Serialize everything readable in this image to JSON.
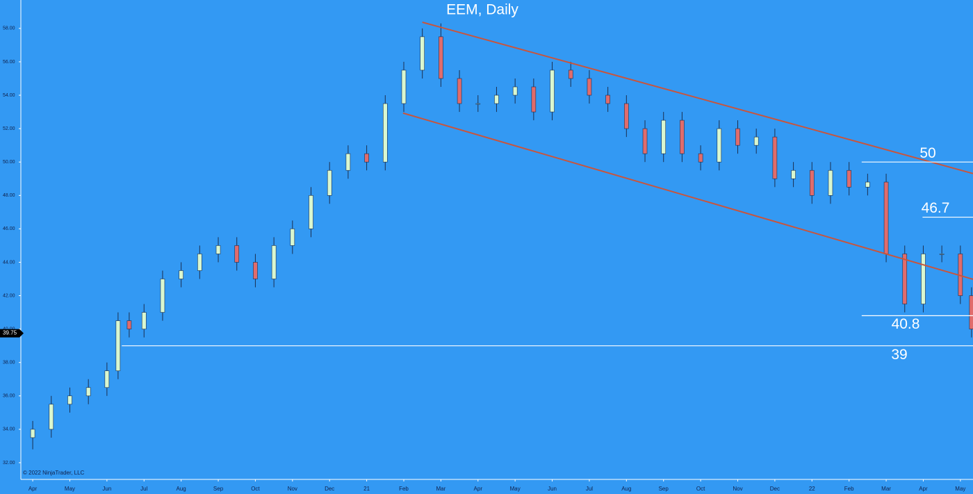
{
  "chart_data": {
    "type": "candlestick",
    "title": "EEM, Daily",
    "copyright": "© 2022 NinjaTrader, LLC",
    "background": "#3399f3",
    "up_color": "#d9f7d0",
    "down_color": "#e06c6c",
    "x": [
      0,
      0.5,
      1,
      1.5,
      2,
      2.3,
      2.6,
      3,
      3.5,
      4,
      4.5,
      5,
      5.5,
      6,
      6.5,
      7,
      7.5,
      8,
      8.5,
      9,
      9.5,
      10,
      10.5,
      11,
      11.5,
      12,
      12.5,
      13,
      13.5,
      14,
      14.5,
      15,
      15.5,
      16,
      16.5,
      17,
      17.5,
      18,
      18.5,
      19,
      19.5,
      20,
      20.5,
      21,
      21.5,
      22,
      22.5,
      23,
      23.5,
      24,
      24.5,
      25,
      25.3
    ],
    "open": [
      33.5,
      34,
      35.5,
      36,
      36.5,
      37.5,
      40.5,
      40,
      41,
      43,
      43.5,
      44.5,
      45,
      44,
      43,
      45,
      46,
      48,
      49.5,
      50.5,
      50,
      53.5,
      55.5,
      57.5,
      55,
      53.5,
      53.5,
      54,
      54.5,
      53,
      55.5,
      55,
      54,
      53.5,
      52,
      50.5,
      52.5,
      50.5,
      50,
      52,
      51,
      51.5,
      49,
      49.5,
      48,
      49.5,
      48.5,
      48.8,
      44.5,
      41.5,
      44.5,
      44.5,
      42
    ],
    "high": [
      34.5,
      36,
      36.5,
      37,
      38,
      41,
      41,
      41.5,
      43.5,
      44,
      45,
      45.5,
      45.5,
      44.5,
      45.5,
      46.5,
      48.5,
      50,
      51,
      51,
      54,
      56,
      58,
      58.3,
      55.5,
      54,
      54.5,
      55,
      55,
      56,
      56,
      55.5,
      54.5,
      54,
      52.5,
      53,
      53,
      51,
      52.5,
      52.5,
      52,
      52,
      50,
      50,
      50,
      50,
      49.3,
      49.3,
      45,
      45,
      45,
      45,
      42.5
    ],
    "low": [
      32.8,
      33.5,
      35,
      35.5,
      36,
      37,
      39.5,
      39.5,
      40.5,
      42.5,
      43,
      44,
      43.5,
      42.5,
      42.5,
      44.5,
      45.5,
      47.5,
      49,
      49.5,
      49.5,
      53,
      55,
      54.5,
      53,
      53,
      53,
      53.5,
      52.5,
      52.5,
      54.5,
      53.5,
      53,
      51.5,
      50,
      50,
      50,
      49.5,
      49.5,
      50.5,
      50.5,
      48.5,
      48.5,
      47.5,
      47.5,
      48,
      48,
      44,
      41,
      41,
      44,
      41.5,
      39.5
    ],
    "close": [
      34,
      35.5,
      36,
      36.5,
      37.5,
      40.5,
      40,
      41,
      43,
      43.5,
      44.5,
      45,
      44,
      43,
      45,
      46,
      48,
      49.5,
      50.5,
      50,
      53.5,
      55.5,
      57.5,
      55,
      53.5,
      53.5,
      54,
      54.5,
      53,
      55.5,
      55,
      54,
      53.5,
      52,
      50.5,
      52.5,
      50.5,
      50,
      52,
      51,
      51.5,
      49,
      49.5,
      48,
      49.5,
      48.5,
      48.8,
      44.5,
      41.5,
      44.5,
      44.5,
      42,
      40
    ],
    "xlim": [
      -0.32,
      25.34
    ],
    "xticks": [
      {
        "value": 0,
        "label": "Apr"
      },
      {
        "value": 1,
        "label": "May"
      },
      {
        "value": 2,
        "label": "Jun"
      },
      {
        "value": 3,
        "label": "Jul"
      },
      {
        "value": 4,
        "label": "Aug"
      },
      {
        "value": 5,
        "label": "Sep"
      },
      {
        "value": 6,
        "label": "Oct"
      },
      {
        "value": 7,
        "label": "Nov"
      },
      {
        "value": 8,
        "label": "Dec"
      },
      {
        "value": 9,
        "label": "21"
      },
      {
        "value": 10,
        "label": "Feb"
      },
      {
        "value": 11,
        "label": "Mar"
      },
      {
        "value": 12,
        "label": "Apr"
      },
      {
        "value": 13,
        "label": "May"
      },
      {
        "value": 14,
        "label": "Jun"
      },
      {
        "value": 15,
        "label": "Jul"
      },
      {
        "value": 16,
        "label": "Aug"
      },
      {
        "value": 17,
        "label": "Sep"
      },
      {
        "value": 18,
        "label": "Oct"
      },
      {
        "value": 19,
        "label": "Nov"
      },
      {
        "value": 20,
        "label": "Dec"
      },
      {
        "value": 21,
        "label": "22"
      },
      {
        "value": 22,
        "label": "Feb"
      },
      {
        "value": 23,
        "label": "Mar"
      },
      {
        "value": 24,
        "label": "Apr"
      },
      {
        "value": 25,
        "label": "May"
      }
    ],
    "ylim": [
      31,
      59.7
    ],
    "yticks": [
      {
        "value": 32,
        "label": "32.00"
      },
      {
        "value": 34,
        "label": "34.00"
      },
      {
        "value": 36,
        "label": "36.00"
      },
      {
        "value": 38,
        "label": "38.00"
      },
      {
        "value": 40,
        "label": "40.00"
      },
      {
        "value": 42,
        "label": "42.00"
      },
      {
        "value": 44,
        "label": "44.00"
      },
      {
        "value": 46,
        "label": "46.00"
      },
      {
        "value": 48,
        "label": "48.00"
      },
      {
        "value": 50,
        "label": "50.00"
      },
      {
        "value": 52,
        "label": "52.00"
      },
      {
        "value": 54,
        "label": "54.00"
      },
      {
        "value": 56,
        "label": "56.00"
      },
      {
        "value": 58,
        "label": "58.00"
      }
    ],
    "grid": false,
    "last_price": 39.75,
    "channels": [
      {
        "color": "#c8553d",
        "x": [
          10.5,
          25.34
        ],
        "y": [
          58.37,
          49.31
        ]
      },
      {
        "color": "#c8553d",
        "x": [
          9.98,
          25.34
        ],
        "y": [
          52.93,
          42.98
        ]
      }
    ],
    "levels": [
      {
        "value": 50,
        "from": 22.34
      },
      {
        "value": 46.7,
        "from": 23.98
      },
      {
        "value": 40.8,
        "from": 22.34
      },
      {
        "value": 39,
        "from": 2.4
      }
    ]
  }
}
